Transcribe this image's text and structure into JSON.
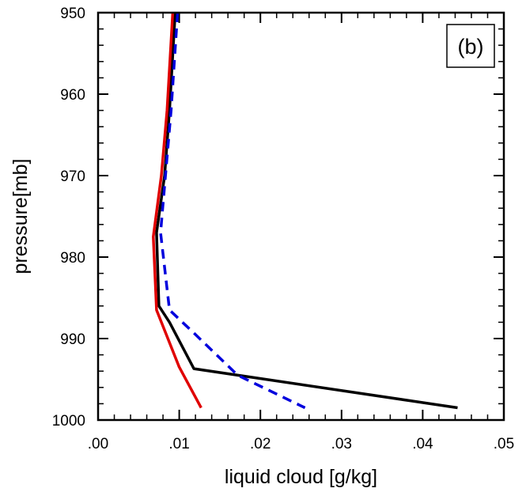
{
  "chart_data": {
    "type": "line",
    "xlabel": "liquid cloud [g/kg]",
    "ylabel": "pressure[mb]",
    "xlim": [
      0,
      0.05
    ],
    "ylim": [
      1000,
      950
    ],
    "y_inverted": true,
    "x_ticks": [
      ".00",
      ".01",
      ".02",
      ".03",
      ".04",
      ".05"
    ],
    "y_ticks": [
      "950",
      "960",
      "970",
      "980",
      "990",
      "1000"
    ],
    "panel_label": "(b)",
    "series": [
      {
        "color": "#000000",
        "dash": "solid",
        "points": [
          [
            0.0095,
            950
          ],
          [
            0.0088,
            962
          ],
          [
            0.0082,
            970
          ],
          [
            0.0072,
            977
          ],
          [
            0.0075,
            986
          ],
          [
            0.0088,
            988
          ],
          [
            0.0118,
            993.7
          ],
          [
            0.0443,
            998.5
          ]
        ]
      },
      {
        "color": "#0000dd",
        "dash": "dash",
        "points": [
          [
            0.0098,
            950
          ],
          [
            0.009,
            962
          ],
          [
            0.0083,
            970
          ],
          [
            0.0077,
            977
          ],
          [
            0.0088,
            986.5
          ],
          [
            0.012,
            989.5
          ],
          [
            0.0172,
            994.5
          ],
          [
            0.0255,
            998.5
          ]
        ]
      },
      {
        "color": "#e00000",
        "dash": "solid",
        "points": [
          [
            0.0092,
            950
          ],
          [
            0.0085,
            962
          ],
          [
            0.0078,
            970
          ],
          [
            0.0068,
            977.5
          ],
          [
            0.0072,
            986.5
          ],
          [
            0.01,
            993.5
          ],
          [
            0.0127,
            998.5
          ]
        ]
      }
    ]
  }
}
